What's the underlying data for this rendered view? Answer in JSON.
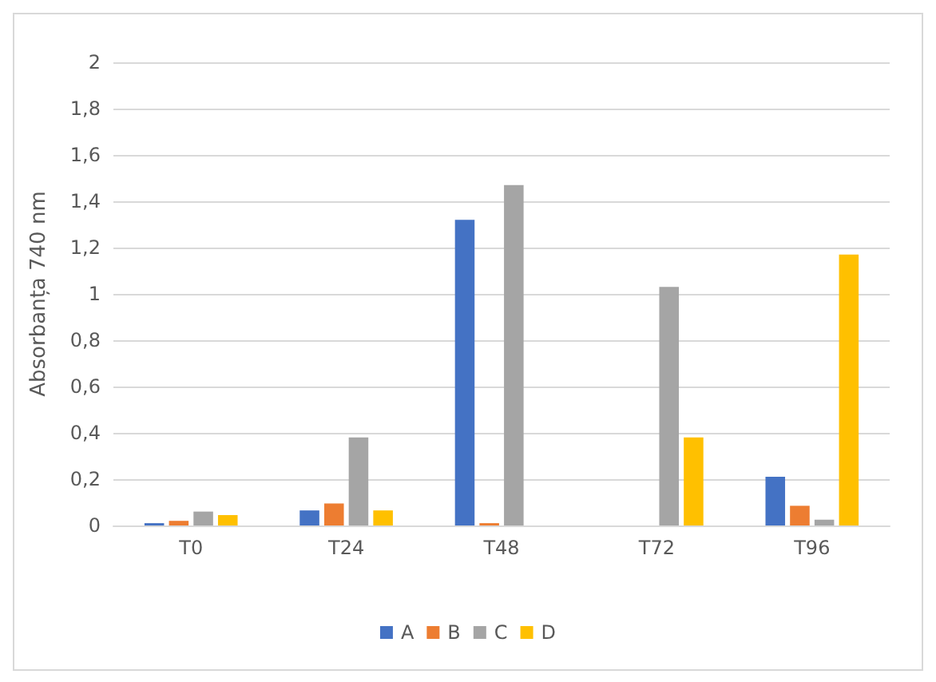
{
  "chart_data": {
    "type": "bar",
    "ylabel": "Absorbanța 740 nm",
    "categories": [
      "T0",
      "T24",
      "T48",
      "T72",
      "T96"
    ],
    "series": [
      {
        "name": "A",
        "color": "#4472c4",
        "values": [
          0.01,
          0.065,
          1.32,
          0,
          0.21
        ]
      },
      {
        "name": "B",
        "color": "#ed7d31",
        "values": [
          0.02,
          0.095,
          0.01,
          0,
          0.085
        ]
      },
      {
        "name": "C",
        "color": "#a5a5a5",
        "values": [
          0.06,
          0.38,
          1.47,
          1.03,
          0.025
        ]
      },
      {
        "name": "D",
        "color": "#ffc000",
        "values": [
          0.045,
          0.065,
          0,
          0.38,
          1.17
        ]
      }
    ],
    "ylim": [
      0,
      2
    ],
    "yticks": [
      0,
      {
        "value": 0.2,
        "label": "0,2"
      },
      {
        "value": 0.4,
        "label": "0,4"
      },
      {
        "value": 0.6,
        "label": "0,6"
      },
      {
        "value": 0.8,
        "label": "0,8"
      },
      1,
      {
        "value": 1.2,
        "label": "1,2"
      },
      {
        "value": 1.4,
        "label": "1,4"
      },
      {
        "value": 1.6,
        "label": "1,6"
      },
      {
        "value": 1.8,
        "label": "1,8"
      },
      2
    ],
    "grid": "y",
    "legend": "bottom"
  }
}
